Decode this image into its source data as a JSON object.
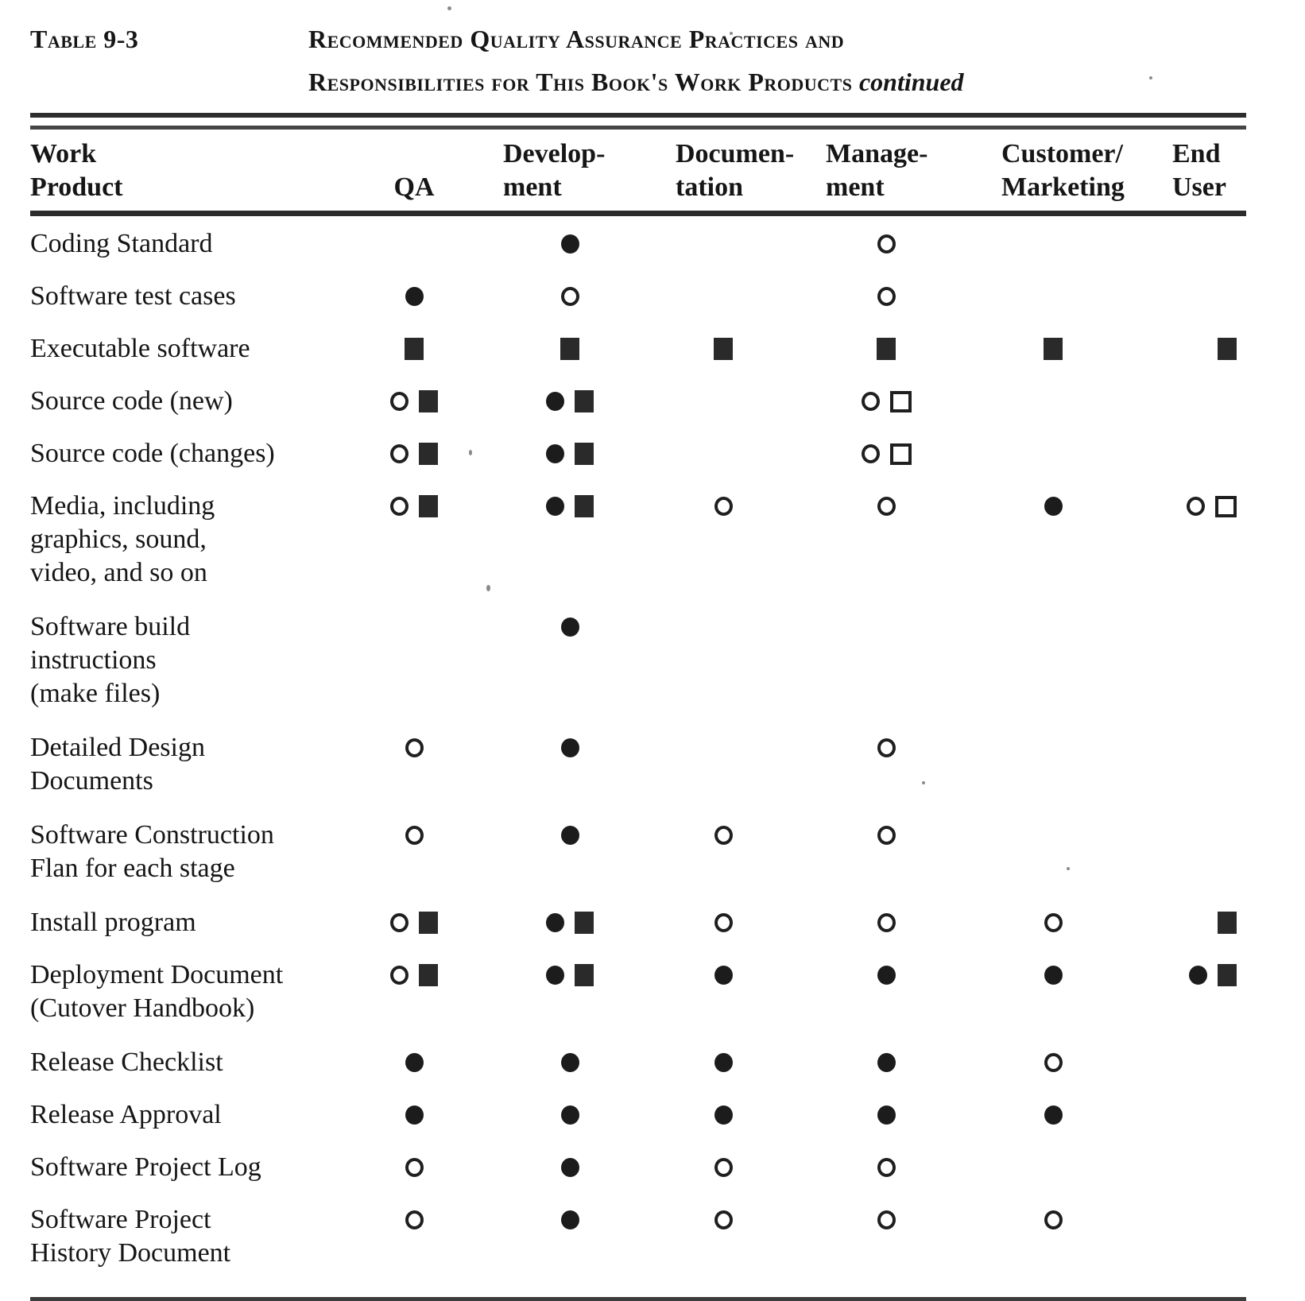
{
  "table_label": "Table 9-3",
  "title": {
    "line1": "Recommended Quality Assurance Practices and",
    "line2": "Responsibilities for This Book's Work Products",
    "continued": "continued"
  },
  "columns": [
    {
      "id": "work_product",
      "lines": [
        "Work",
        "Product"
      ]
    },
    {
      "id": "qa",
      "lines": [
        "QA"
      ]
    },
    {
      "id": "development",
      "lines": [
        "Develop-",
        "ment"
      ]
    },
    {
      "id": "documentation",
      "lines": [
        "Documen-",
        "tation"
      ]
    },
    {
      "id": "management",
      "lines": [
        "Manage-",
        "ment"
      ]
    },
    {
      "id": "customer_marketing",
      "lines": [
        "Customer/",
        "Marketing"
      ]
    },
    {
      "id": "end_user",
      "lines": [
        "End",
        "User"
      ]
    }
  ],
  "symbol_glyphs": {
    "filled-circle": "●",
    "open-circle": "○",
    "filled-square": "■",
    "open-square": "□"
  },
  "rows": [
    {
      "product_lines": [
        "Coding Standard"
      ],
      "cells": {
        "qa": [],
        "development": [
          "filled-circle"
        ],
        "documentation": [],
        "management": [
          "open-circle"
        ],
        "customer_marketing": [],
        "end_user": []
      }
    },
    {
      "product_lines": [
        "Software test cases"
      ],
      "cells": {
        "qa": [
          "filled-circle"
        ],
        "development": [
          "open-circle"
        ],
        "documentation": [],
        "management": [
          "open-circle"
        ],
        "customer_marketing": [],
        "end_user": []
      }
    },
    {
      "product_lines": [
        "Executable software"
      ],
      "cells": {
        "qa": [
          "filled-square"
        ],
        "development": [
          "filled-square"
        ],
        "documentation": [
          "filled-square"
        ],
        "management": [
          "filled-square"
        ],
        "customer_marketing": [
          "filled-square"
        ],
        "end_user": [
          "filled-square"
        ]
      }
    },
    {
      "product_lines": [
        "Source code (new)"
      ],
      "cells": {
        "qa": [
          "open-circle",
          "filled-square"
        ],
        "development": [
          "filled-circle",
          "filled-square"
        ],
        "documentation": [],
        "management": [
          "open-circle",
          "open-square"
        ],
        "customer_marketing": [],
        "end_user": []
      }
    },
    {
      "product_lines": [
        "Source code (changes)"
      ],
      "cells": {
        "qa": [
          "open-circle",
          "filled-square"
        ],
        "development": [
          "filled-circle",
          "filled-square"
        ],
        "documentation": [],
        "management": [
          "open-circle",
          "open-square"
        ],
        "customer_marketing": [],
        "end_user": []
      }
    },
    {
      "product_lines": [
        "Media, including",
        "graphics, sound,",
        "video, and so on"
      ],
      "cells": {
        "qa": [
          "open-circle",
          "filled-square"
        ],
        "development": [
          "filled-circle",
          "filled-square"
        ],
        "documentation": [
          "open-circle"
        ],
        "management": [
          "open-circle"
        ],
        "customer_marketing": [
          "filled-circle"
        ],
        "end_user": [
          "open-circle",
          "open-square"
        ]
      }
    },
    {
      "product_lines": [
        "Software  build",
        "instructions",
        "(make files)"
      ],
      "cells": {
        "qa": [],
        "development": [
          "filled-circle"
        ],
        "documentation": [],
        "management": [],
        "customer_marketing": [],
        "end_user": []
      }
    },
    {
      "product_lines": [
        "Detailed Design",
        "Documents"
      ],
      "cells": {
        "qa": [
          "open-circle"
        ],
        "development": [
          "filled-circle"
        ],
        "documentation": [],
        "management": [
          "open-circle"
        ],
        "customer_marketing": [],
        "end_user": []
      }
    },
    {
      "product_lines": [
        "Software  Construction",
        "Flan for each stage"
      ],
      "cells": {
        "qa": [
          "open-circle"
        ],
        "development": [
          "filled-circle"
        ],
        "documentation": [
          "open-circle"
        ],
        "management": [
          "open-circle"
        ],
        "customer_marketing": [],
        "end_user": []
      }
    },
    {
      "product_lines": [
        "Install program"
      ],
      "cells": {
        "qa": [
          "open-circle",
          "filled-square"
        ],
        "development": [
          "filled-circle",
          "filled-square"
        ],
        "documentation": [
          "open-circle"
        ],
        "management": [
          "open-circle"
        ],
        "customer_marketing": [
          "open-circle"
        ],
        "end_user": [
          "filled-square"
        ]
      }
    },
    {
      "product_lines": [
        "Deployment Document",
        "(Cutover  Handbook)"
      ],
      "cells": {
        "qa": [
          "open-circle",
          "filled-square"
        ],
        "development": [
          "filled-circle",
          "filled-square"
        ],
        "documentation": [
          "filled-circle"
        ],
        "management": [
          "filled-circle"
        ],
        "customer_marketing": [
          "filled-circle"
        ],
        "end_user": [
          "filled-circle",
          "filled-square"
        ]
      }
    },
    {
      "product_lines": [
        "Release  Checklist"
      ],
      "cells": {
        "qa": [
          "filled-circle"
        ],
        "development": [
          "filled-circle"
        ],
        "documentation": [
          "filled-circle"
        ],
        "management": [
          "filled-circle"
        ],
        "customer_marketing": [
          "open-circle"
        ],
        "end_user": []
      }
    },
    {
      "product_lines": [
        "Release  Approval"
      ],
      "cells": {
        "qa": [
          "filled-circle"
        ],
        "development": [
          "filled-circle"
        ],
        "documentation": [
          "filled-circle"
        ],
        "management": [
          "filled-circle"
        ],
        "customer_marketing": [
          "filled-circle"
        ],
        "end_user": []
      }
    },
    {
      "product_lines": [
        "Software Project Log"
      ],
      "cells": {
        "qa": [
          "open-circle"
        ],
        "development": [
          "filled-circle"
        ],
        "documentation": [
          "open-circle"
        ],
        "management": [
          "open-circle"
        ],
        "customer_marketing": [],
        "end_user": []
      }
    },
    {
      "product_lines": [
        "Software Project",
        "History Document"
      ],
      "cells": {
        "qa": [
          "open-circle"
        ],
        "development": [
          "filled-circle"
        ],
        "documentation": [
          "open-circle"
        ],
        "management": [
          "open-circle"
        ],
        "customer_marketing": [
          "open-circle"
        ],
        "end_user": []
      }
    }
  ]
}
